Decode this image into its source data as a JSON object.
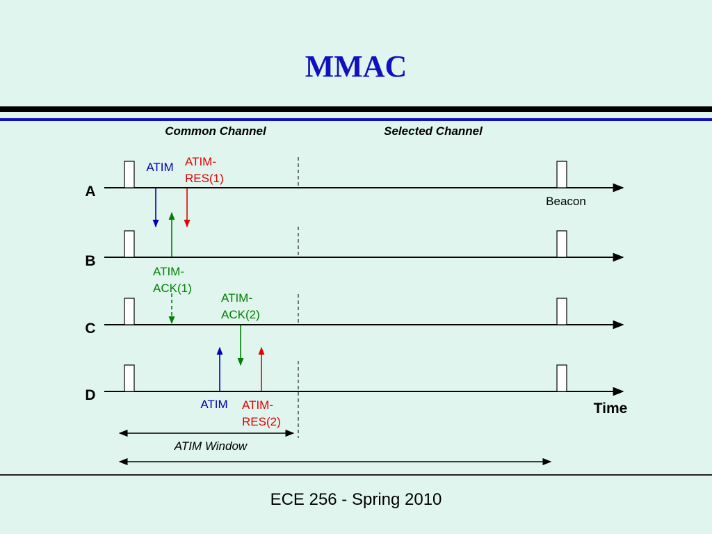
{
  "title": "MMAC",
  "footer": "ECE 256 - Spring 2010",
  "diagram": {
    "channel_labels": {
      "common": "Common Channel",
      "selected": "Selected Channel"
    },
    "nodes": [
      "A",
      "B",
      "C",
      "D"
    ],
    "beacon_label": "Beacon",
    "time_label": "Time",
    "window_label": "ATIM Window",
    "messages": {
      "atim_a": "ATIM",
      "atim_res1_line1": "ATIM-",
      "atim_res1_line2": "RES(1)",
      "atim_ack1_line1": "ATIM-",
      "atim_ack1_line2": "ACK(1)",
      "atim_ack2_line1": "ATIM-",
      "atim_ack2_line2": "ACK(2)",
      "atim_d": "ATIM",
      "atim_res2_line1": "ATIM-",
      "atim_res2_line2": "RES(2)"
    },
    "colors": {
      "atim": "#0000b0",
      "res": "#e00000",
      "ack": "#008000",
      "line": "#000000",
      "dash": "#555555"
    }
  }
}
